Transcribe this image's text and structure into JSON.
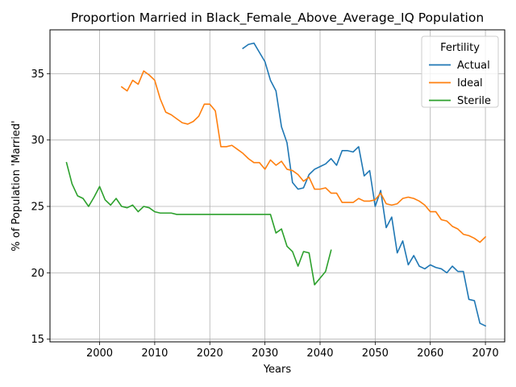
{
  "chart_data": {
    "type": "line",
    "title": "Proportion Married in Black_Female_Above_Average_IQ Population",
    "xlabel": "Years",
    "ylabel": "% of Population 'Married'",
    "xlim": [
      1991,
      2073.5
    ],
    "ylim": [
      14.8,
      38.3
    ],
    "xticks": [
      2000,
      2010,
      2020,
      2030,
      2040,
      2050,
      2060,
      2070
    ],
    "yticks": [
      15,
      20,
      25,
      30,
      35
    ],
    "grid": true,
    "legend": {
      "title": "Fertility",
      "placement": "top-right"
    },
    "series": [
      {
        "name": "Actual",
        "color": "#1f77b4",
        "x": [
          2026,
          2027,
          2028,
          2029,
          2030,
          2031,
          2032,
          2033,
          2034,
          2035,
          2036,
          2037,
          2038,
          2039,
          2040,
          2041,
          2042,
          2043,
          2044,
          2045,
          2046,
          2047,
          2048,
          2049,
          2050,
          2051,
          2052,
          2053,
          2054,
          2055,
          2056,
          2057,
          2058,
          2059,
          2060,
          2061,
          2062,
          2063,
          2064,
          2065,
          2066,
          2067,
          2068,
          2069,
          2070
        ],
        "values": [
          36.9,
          37.2,
          37.3,
          36.6,
          35.9,
          34.5,
          33.7,
          31.0,
          29.8,
          26.8,
          26.3,
          26.4,
          27.4,
          27.8,
          28.0,
          28.2,
          28.6,
          28.1,
          29.2,
          29.2,
          29.1,
          29.5,
          27.3,
          27.7,
          25.0,
          26.2,
          23.4,
          24.2,
          21.5,
          22.4,
          20.6,
          21.3,
          20.5,
          20.3,
          20.6,
          20.4,
          20.3,
          20.0,
          20.5,
          20.1,
          20.1,
          18.0,
          17.9,
          16.2,
          16.0
        ]
      },
      {
        "name": "Ideal",
        "color": "#ff7f0e",
        "x": [
          2004,
          2005,
          2006,
          2007,
          2008,
          2009,
          2010,
          2011,
          2012,
          2013,
          2014,
          2015,
          2016,
          2017,
          2018,
          2019,
          2020,
          2021,
          2022,
          2023,
          2024,
          2025,
          2026,
          2027,
          2028,
          2029,
          2030,
          2031,
          2032,
          2033,
          2034,
          2035,
          2036,
          2037,
          2038,
          2039,
          2040,
          2041,
          2042,
          2043,
          2044,
          2045,
          2046,
          2047,
          2048,
          2049,
          2050,
          2051,
          2052,
          2053,
          2054,
          2055,
          2056,
          2057,
          2058,
          2059,
          2060,
          2061,
          2062,
          2063,
          2064,
          2065,
          2066,
          2067,
          2068,
          2069,
          2070
        ],
        "values": [
          34.0,
          33.7,
          34.5,
          34.2,
          35.2,
          34.9,
          34.5,
          33.1,
          32.1,
          31.9,
          31.6,
          31.3,
          31.2,
          31.4,
          31.8,
          32.7,
          32.7,
          32.2,
          29.5,
          29.5,
          29.6,
          29.3,
          29.0,
          28.6,
          28.3,
          28.3,
          27.8,
          28.5,
          28.1,
          28.4,
          27.8,
          27.7,
          27.4,
          26.9,
          27.2,
          26.3,
          26.3,
          26.4,
          26.0,
          26.0,
          25.3,
          25.3,
          25.3,
          25.6,
          25.4,
          25.4,
          25.5,
          26.0,
          25.2,
          25.1,
          25.2,
          25.6,
          25.7,
          25.6,
          25.4,
          25.1,
          24.6,
          24.6,
          24.0,
          23.9,
          23.5,
          23.3,
          22.9,
          22.8,
          22.6,
          22.3,
          22.7
        ]
      },
      {
        "name": "Sterile",
        "color": "#2ca02c",
        "x": [
          1994,
          1995,
          1996,
          1997,
          1998,
          1999,
          2000,
          2001,
          2002,
          2003,
          2004,
          2005,
          2006,
          2007,
          2008,
          2009,
          2010,
          2011,
          2012,
          2013,
          2014,
          2015,
          2016,
          2017,
          2018,
          2019,
          2020,
          2021,
          2022,
          2023,
          2024,
          2025,
          2026,
          2027,
          2028,
          2029,
          2030,
          2031,
          2032,
          2033,
          2034,
          2035,
          2036,
          2037,
          2038,
          2039,
          2040,
          2041,
          2042
        ],
        "values": [
          28.3,
          26.7,
          25.8,
          25.6,
          25.0,
          25.7,
          26.5,
          25.5,
          25.1,
          25.6,
          25.0,
          24.9,
          25.1,
          24.6,
          25.0,
          24.9,
          24.6,
          24.5,
          24.5,
          24.5,
          24.4,
          24.4,
          24.4,
          24.4,
          24.4,
          24.4,
          24.4,
          24.4,
          24.4,
          24.4,
          24.4,
          24.4,
          24.4,
          24.4,
          24.4,
          24.4,
          24.4,
          24.4,
          23.0,
          23.3,
          22.0,
          21.6,
          20.5,
          21.6,
          21.5,
          19.1,
          19.6,
          20.1,
          21.7
        ]
      }
    ]
  }
}
